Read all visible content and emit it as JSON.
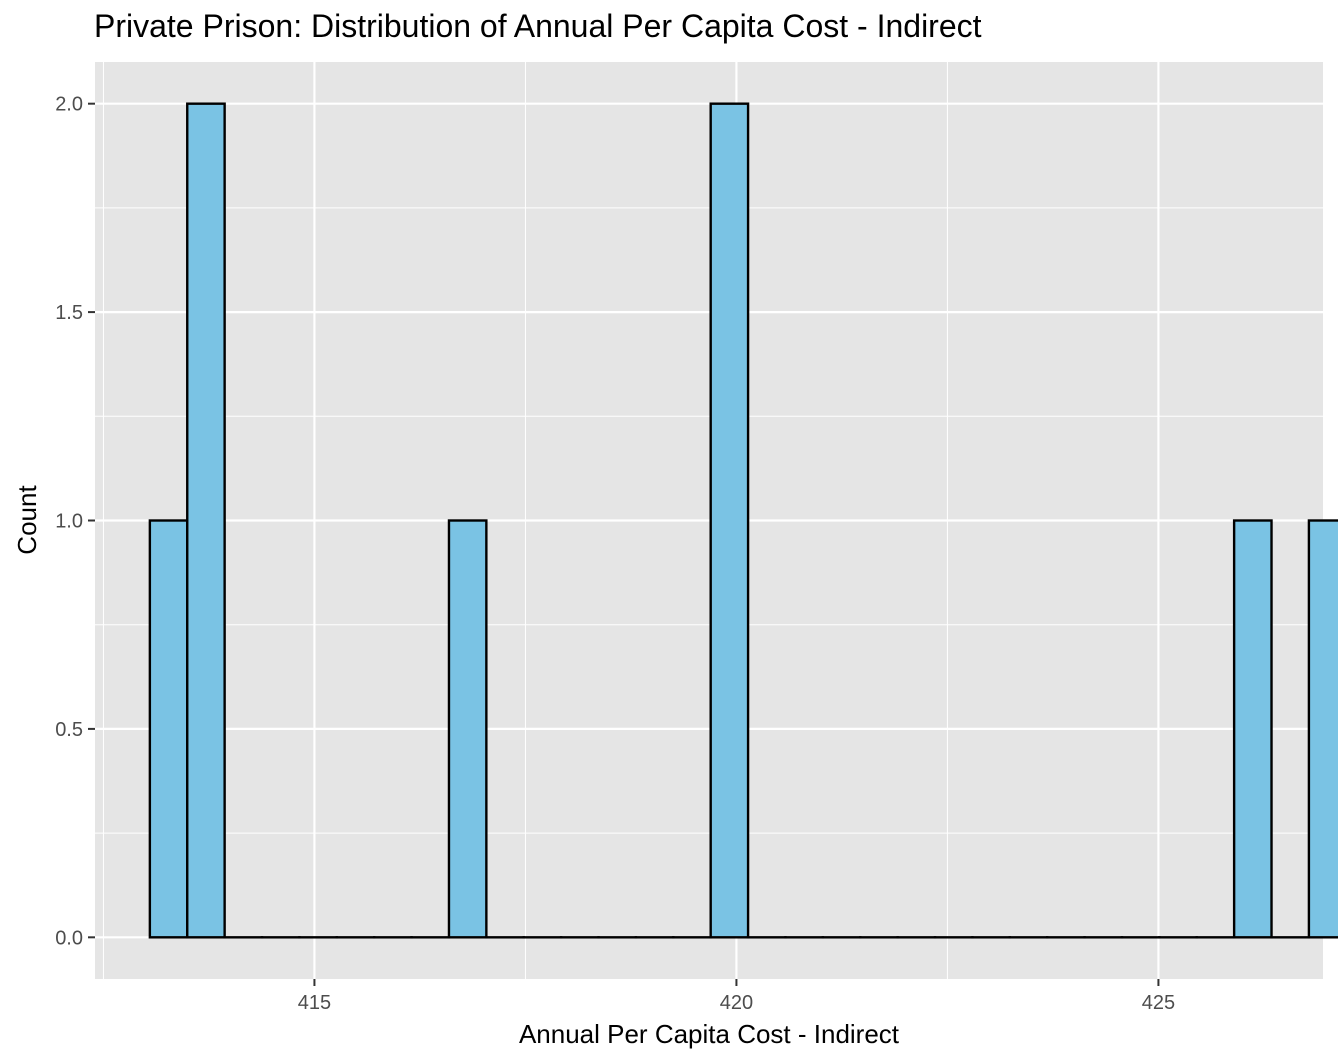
{
  "chart_data": {
    "type": "bar",
    "title": "Private Prison: Distribution of Annual Per Capita Cost - Indirect",
    "xlabel": "Annual Per Capita Cost - Indirect",
    "ylabel": "Count",
    "xlim": [
      412.4,
      426.95
    ],
    "ylim": [
      -0.1,
      2.1
    ],
    "x_ticks": [
      415,
      420,
      425
    ],
    "x_tick_labels": [
      "415",
      "420",
      "425"
    ],
    "y_ticks": [
      0,
      0.5,
      1,
      1.5,
      2
    ],
    "y_tick_labels": [
      "0.0",
      "0.5",
      "1.0",
      "1.5",
      "2.0"
    ],
    "bin_width": 0.443,
    "bin_start": 413.05,
    "bin_counts": [
      1,
      2,
      0,
      0,
      0,
      0,
      0,
      0,
      1,
      0,
      0,
      0,
      0,
      0,
      0,
      2,
      0,
      0,
      0,
      0,
      0,
      0,
      0,
      0,
      0,
      0,
      0,
      0,
      0,
      1,
      0,
      1
    ],
    "grid": true,
    "colors": {
      "fill": "#7AC3E4",
      "stroke": "#000000",
      "panel": "#E5E5E5",
      "grid": "#FFFFFF"
    }
  }
}
